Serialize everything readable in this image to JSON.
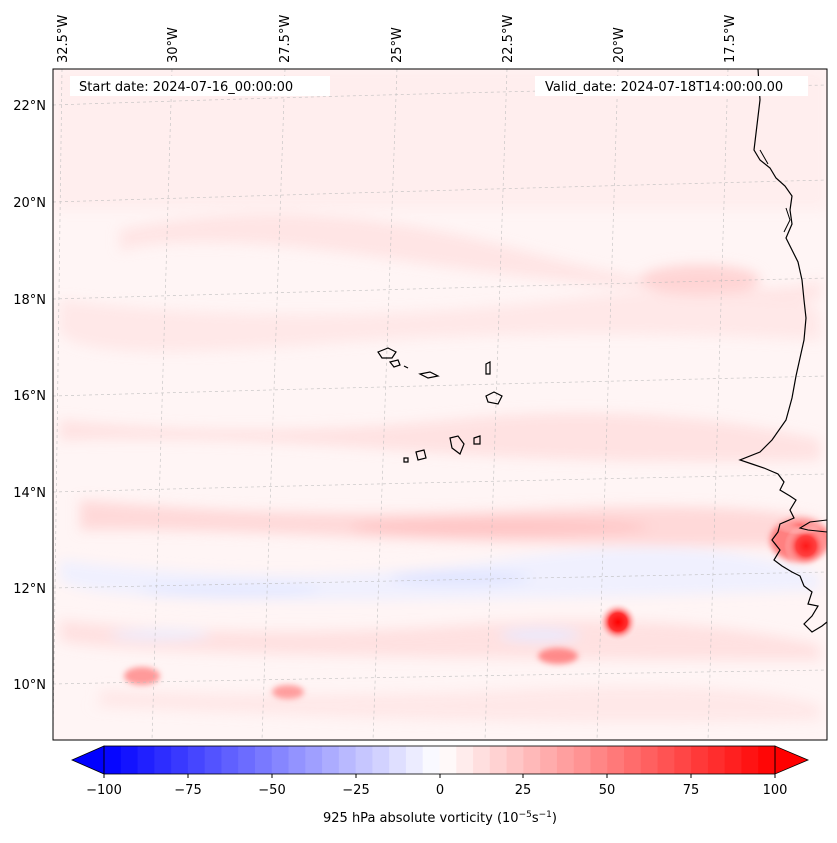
{
  "map": {
    "start_date": "Start date: 2024-07-16_00:00:00",
    "valid_date": "Valid_date: 2024-07-18T14:00:00.00",
    "lon_labels": [
      "32.5°W",
      "30°W",
      "27.5°W",
      "25°W",
      "22.5°W",
      "20°W",
      "17.5°W"
    ],
    "lat_labels": [
      "22°N",
      "20°N",
      "18°N",
      "16°N",
      "14°N",
      "12°N",
      "10°N"
    ]
  },
  "colorbar": {
    "ticks": [
      "−100",
      "−75",
      "−50",
      "−25",
      "0",
      "25",
      "50",
      "75",
      "100"
    ],
    "label": "925 hPa absolute vorticity (10",
    "label_exp1": "−5",
    "label_mid": "s",
    "label_exp2": "−1",
    "label_end": ")",
    "min_color": "#0000ff",
    "mid_color": "#ffffff",
    "max_color": "#ff0000"
  }
}
